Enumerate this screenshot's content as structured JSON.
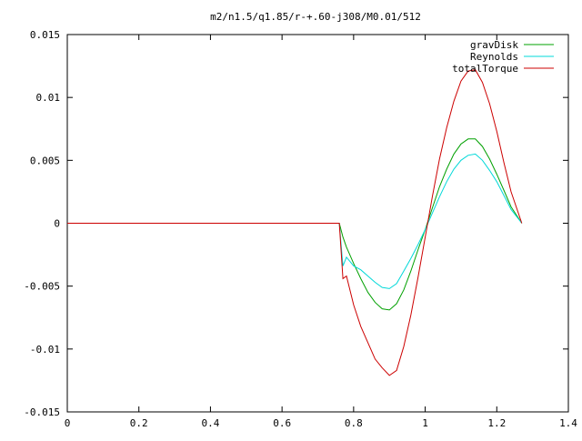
{
  "chart_data": {
    "type": "line",
    "title": "m2/n1.5/q1.85/r-+.60-j308/M0.01/512",
    "xlabel": "",
    "ylabel": "",
    "xlim": [
      0,
      1.4
    ],
    "ylim": [
      -0.015,
      0.015
    ],
    "x_ticks": [
      "0",
      "0.2",
      "0.4",
      "0.6",
      "0.8",
      "1",
      "1.2",
      "1.4"
    ],
    "y_ticks": [
      "-0.015",
      "-0.01",
      "-0.005",
      "0",
      "0.005",
      "0.01",
      "0.015"
    ],
    "grid": false,
    "legend_position": "top-right",
    "x": [
      0,
      0.2,
      0.4,
      0.6,
      0.76,
      0.77,
      0.78,
      0.8,
      0.82,
      0.84,
      0.86,
      0.88,
      0.9,
      0.92,
      0.94,
      0.96,
      0.98,
      1.0,
      1.02,
      1.04,
      1.06,
      1.08,
      1.1,
      1.12,
      1.14,
      1.16,
      1.18,
      1.2,
      1.22,
      1.24,
      1.27
    ],
    "series": [
      {
        "name": "gravDisk",
        "color": "#00a000",
        "values": [
          0,
          0,
          0,
          0,
          0,
          -0.0011,
          -0.0019,
          -0.0032,
          -0.0044,
          -0.0055,
          -0.0063,
          -0.0068,
          -0.0069,
          -0.0064,
          -0.0053,
          -0.0038,
          -0.0021,
          -0.0005,
          0.0012,
          0.0029,
          0.0043,
          0.0055,
          0.0063,
          0.0067,
          0.0067,
          0.0061,
          0.0051,
          0.0039,
          0.0026,
          0.0013,
          0
        ]
      },
      {
        "name": "Reynolds",
        "color": "#00d8d8",
        "values": [
          0,
          0,
          0,
          0,
          0,
          -0.0034,
          -0.0027,
          -0.0034,
          -0.0037,
          -0.0042,
          -0.0047,
          -0.0051,
          -0.0052,
          -0.0048,
          -0.0038,
          -0.0028,
          -0.0017,
          -0.0005,
          0.0008,
          0.0021,
          0.0033,
          0.0043,
          0.005,
          0.0054,
          0.0055,
          0.005,
          0.0042,
          0.0033,
          0.0022,
          0.0011,
          0
        ]
      },
      {
        "name": "totalTorque",
        "color": "#cc0000",
        "values": [
          0,
          0,
          0,
          0,
          0,
          -0.0044,
          -0.0042,
          -0.0065,
          -0.0082,
          -0.0095,
          -0.0108,
          -0.0115,
          -0.0121,
          -0.0117,
          -0.0098,
          -0.0073,
          -0.0043,
          -0.0011,
          0.0021,
          0.0051,
          0.0076,
          0.0097,
          0.0113,
          0.0121,
          0.0122,
          0.0112,
          0.0095,
          0.0073,
          0.0048,
          0.0025,
          0
        ]
      }
    ]
  }
}
